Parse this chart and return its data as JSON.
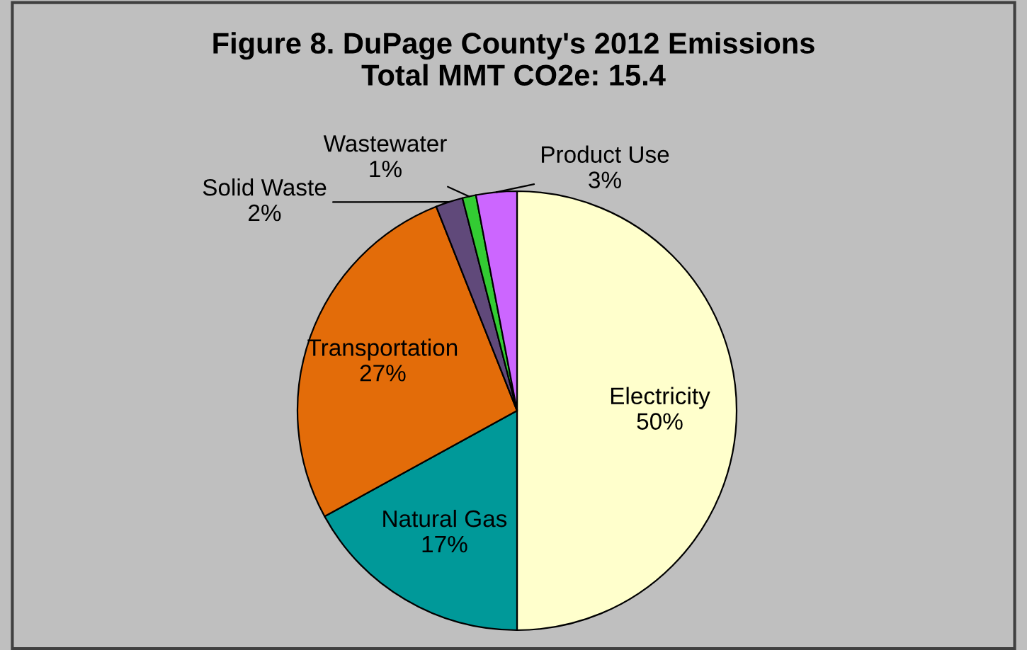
{
  "chart_data": {
    "type": "pie",
    "title": "Figure 8. DuPage County's 2012 Emissions\nTotal MMT CO2e: 15.4",
    "categories": [
      "Electricity",
      "Natural Gas",
      "Transportation",
      "Solid Waste",
      "Wastewater",
      "Product Use"
    ],
    "values": [
      50,
      17,
      27,
      2,
      1,
      3
    ],
    "value_labels": [
      "50%",
      "17%",
      "27%",
      "2%",
      "1%",
      "3%"
    ],
    "colors": [
      "#ffffcc",
      "#009999",
      "#e36c09",
      "#60497a",
      "#33cc33",
      "#cc66ff"
    ],
    "legend": false
  }
}
